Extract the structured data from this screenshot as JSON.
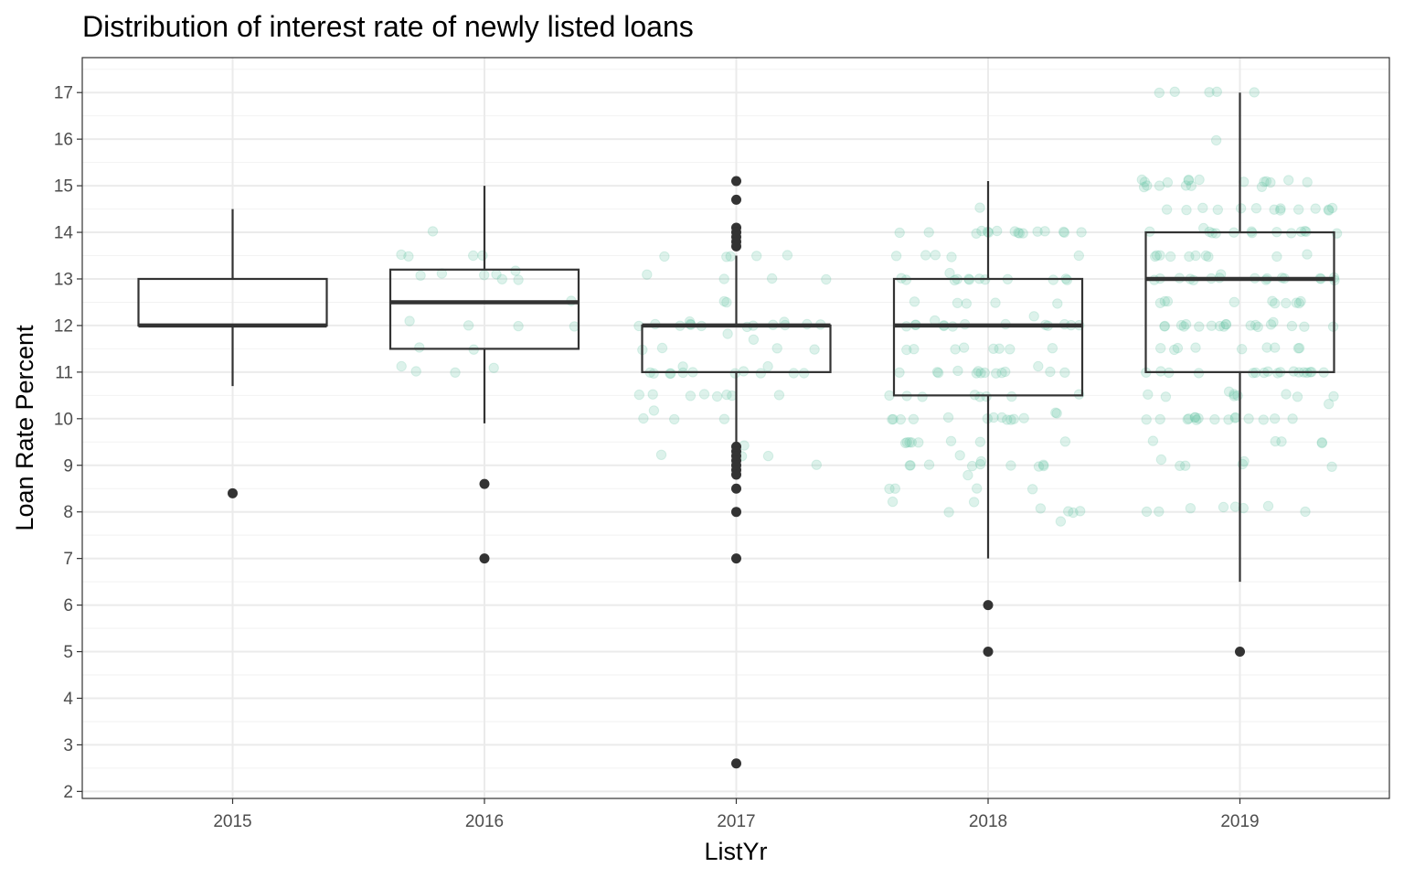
{
  "chart_data": {
    "type": "boxplot",
    "title": "Distribution of interest rate of newly listed loans",
    "xlabel": "ListYr",
    "ylabel": "Loan Rate Percent",
    "ylim": [
      1.85,
      17.75
    ],
    "yticks": [
      2,
      3,
      4,
      5,
      6,
      7,
      8,
      9,
      10,
      11,
      12,
      13,
      14,
      15,
      16,
      17
    ],
    "grid": true,
    "categories": [
      "2015",
      "2016",
      "2017",
      "2018",
      "2019"
    ],
    "boxes": [
      {
        "category": "2015",
        "lower_whisker": 10.7,
        "q1": 12.0,
        "median": 12.0,
        "q3": 13.0,
        "upper_whisker": 14.5,
        "outliers": [
          8.4
        ]
      },
      {
        "category": "2016",
        "lower_whisker": 9.9,
        "q1": 11.5,
        "median": 12.5,
        "q3": 13.2,
        "upper_whisker": 15.0,
        "outliers": [
          8.6,
          7.0
        ]
      },
      {
        "category": "2017",
        "lower_whisker": 9.5,
        "q1": 11.0,
        "median": 12.0,
        "q3": 12.0,
        "upper_whisker": 13.5,
        "outliers": [
          15.1,
          14.7,
          14.1,
          14.0,
          13.9,
          13.8,
          13.7,
          9.4,
          9.3,
          9.2,
          9.1,
          9.0,
          8.9,
          8.8,
          8.5,
          8.0,
          7.0,
          2.6
        ]
      },
      {
        "category": "2018",
        "lower_whisker": 7.0,
        "q1": 10.5,
        "median": 12.0,
        "q3": 13.0,
        "upper_whisker": 15.1,
        "outliers": [
          6.0,
          5.0
        ]
      },
      {
        "category": "2019",
        "lower_whisker": 6.5,
        "q1": 11.0,
        "median": 13.0,
        "q3": 14.0,
        "upper_whisker": 17.0,
        "outliers": [
          5.0
        ]
      }
    ],
    "jitter_points": {
      "color": "#66c2a5",
      "opacity": 0.22,
      "values": {
        "2015": [],
        "2016": [
          13.5,
          13.5,
          13.5,
          13.5,
          13.0,
          13.1,
          13.2,
          13.1,
          13.0,
          13.1,
          13.1,
          12.5,
          12.1,
          12.0,
          12.0,
          12.0,
          11.5,
          11.5,
          11.1,
          11.0,
          11.0,
          11.1,
          14.0
        ],
        "2017": [
          13.5,
          13.5,
          13.5,
          13.5,
          13.5,
          13.1,
          13.0,
          13.0,
          13.0,
          12.5,
          12.5,
          12.1,
          12.1,
          12.0,
          12.0,
          12.0,
          12.0,
          12.0,
          12.0,
          12.0,
          12.0,
          12.0,
          12.0,
          12.0,
          12.0,
          11.8,
          11.7,
          11.5,
          11.5,
          11.5,
          11.5,
          11.1,
          11.1,
          11.0,
          11.0,
          11.0,
          11.0,
          11.0,
          11.0,
          11.0,
          11.0,
          11.0,
          11.0,
          11.0,
          10.5,
          10.5,
          10.5,
          10.5,
          10.5,
          10.5,
          10.5,
          10.5,
          10.2,
          10.0,
          10.0,
          10.0,
          9.4,
          9.2,
          9.2,
          9.2,
          9.0
        ],
        "2018": [
          14.5,
          14.0,
          14.0,
          14.0,
          14.0,
          14.0,
          14.0,
          14.0,
          14.0,
          14.0,
          14.0,
          14.0,
          14.0,
          14.0,
          14.0,
          14.0,
          14.0,
          13.5,
          13.5,
          13.5,
          13.5,
          13.5,
          13.1,
          13.0,
          13.0,
          13.0,
          13.0,
          13.0,
          13.0,
          13.0,
          13.0,
          13.0,
          13.0,
          13.0,
          13.0,
          12.5,
          12.5,
          12.5,
          12.5,
          12.5,
          12.2,
          12.1,
          12.0,
          12.0,
          12.0,
          12.0,
          12.0,
          12.0,
          12.0,
          12.0,
          12.0,
          12.0,
          12.0,
          12.0,
          12.0,
          11.5,
          11.5,
          11.5,
          11.5,
          11.5,
          11.5,
          11.5,
          11.5,
          11.1,
          11.0,
          11.0,
          11.0,
          11.0,
          11.0,
          11.0,
          11.0,
          11.0,
          11.0,
          11.0,
          11.0,
          11.0,
          11.0,
          10.5,
          10.5,
          10.5,
          10.5,
          10.5,
          10.5,
          10.5,
          10.5,
          10.1,
          10.1,
          10.0,
          10.0,
          10.0,
          10.0,
          10.0,
          10.0,
          10.0,
          10.0,
          10.0,
          10.0,
          10.0,
          10.0,
          9.5,
          9.5,
          9.5,
          9.5,
          9.5,
          9.5,
          9.5,
          9.5,
          9.2,
          9.1,
          9.0,
          9.0,
          9.0,
          9.0,
          9.0,
          9.0,
          9.0,
          9.0,
          9.0,
          8.8,
          8.5,
          8.5,
          8.5,
          8.5,
          8.2,
          8.2,
          8.1,
          8.0,
          8.0,
          8.0,
          8.0,
          7.8
        ],
        "2019": [
          17.0,
          17.0,
          17.0,
          17.0,
          17.0,
          16.0,
          15.1,
          15.1,
          15.1,
          15.1,
          15.1,
          15.1,
          15.1,
          15.1,
          15.1,
          15.1,
          15.1,
          15.1,
          15.0,
          15.0,
          15.0,
          15.0,
          15.0,
          15.0,
          14.5,
          14.5,
          14.5,
          14.5,
          14.5,
          14.5,
          14.5,
          14.5,
          14.5,
          14.5,
          14.5,
          14.5,
          14.5,
          14.5,
          14.1,
          14.0,
          14.0,
          14.0,
          14.0,
          14.0,
          14.0,
          14.0,
          14.0,
          14.0,
          14.0,
          14.0,
          14.0,
          14.0,
          13.5,
          13.5,
          13.5,
          13.5,
          13.5,
          13.5,
          13.5,
          13.5,
          13.5,
          13.5,
          13.1,
          13.0,
          13.0,
          13.0,
          13.0,
          13.0,
          13.0,
          13.0,
          13.0,
          13.0,
          13.0,
          13.0,
          13.0,
          13.0,
          13.0,
          13.0,
          13.0,
          12.5,
          12.5,
          12.5,
          12.5,
          12.5,
          12.5,
          12.5,
          12.5,
          12.5,
          12.5,
          12.1,
          12.0,
          12.0,
          12.0,
          12.0,
          12.0,
          12.0,
          12.0,
          12.0,
          12.0,
          12.0,
          12.0,
          12.0,
          12.0,
          12.0,
          12.0,
          12.0,
          12.0,
          12.0,
          11.5,
          11.5,
          11.5,
          11.5,
          11.5,
          11.5,
          11.5,
          11.5,
          11.5,
          11.0,
          11.0,
          11.0,
          11.0,
          11.0,
          11.0,
          11.0,
          11.0,
          11.0,
          11.0,
          11.0,
          11.0,
          11.0,
          11.0,
          11.0,
          11.0,
          11.0,
          10.6,
          10.5,
          10.5,
          10.5,
          10.5,
          10.5,
          10.5,
          10.5,
          10.5,
          10.3,
          10.0,
          10.0,
          10.0,
          10.0,
          10.0,
          10.0,
          10.0,
          10.0,
          10.0,
          10.0,
          10.0,
          10.0,
          10.0,
          10.0,
          10.0,
          10.0,
          9.5,
          9.5,
          9.5,
          9.5,
          9.5,
          9.1,
          9.1,
          9.0,
          9.0,
          9.0,
          9.0,
          8.1,
          8.1,
          8.1,
          8.1,
          8.1,
          8.0,
          8.0,
          8.0
        ]
      }
    }
  }
}
